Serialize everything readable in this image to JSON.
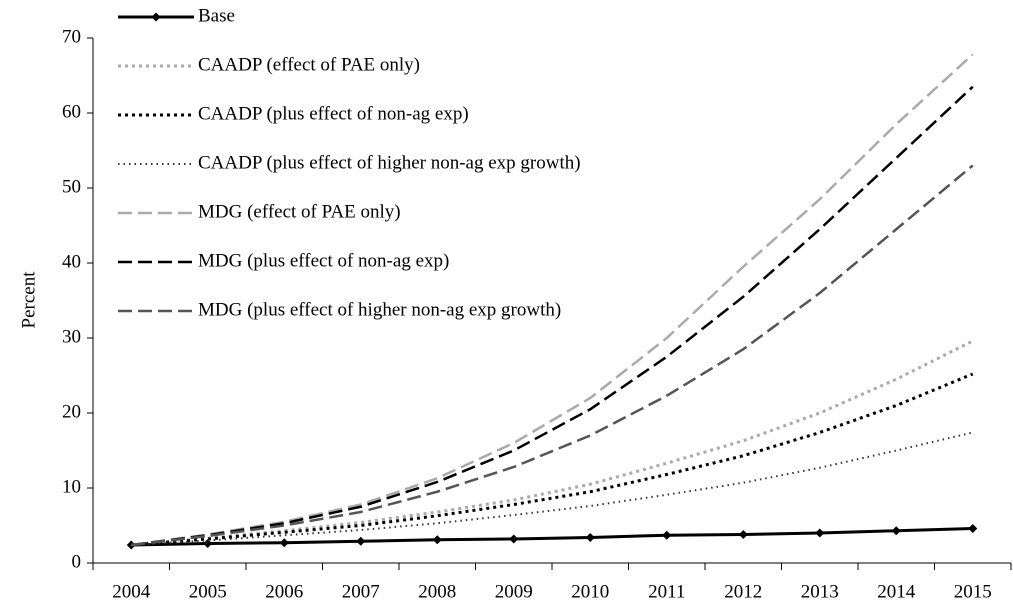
{
  "chart_data": {
    "type": "line",
    "categories": [
      "2004",
      "2005",
      "2006",
      "2007",
      "2008",
      "2009",
      "2010",
      "2011",
      "2012",
      "2013",
      "2014",
      "2015"
    ],
    "ylabel": "Percent",
    "ylim": [
      0,
      70
    ],
    "yticks": [
      0,
      10,
      20,
      30,
      40,
      50,
      60,
      70
    ],
    "grid": false,
    "legend": "upper left",
    "series": [
      {
        "name": "Base",
        "color": "#000000",
        "dash": "solid",
        "marker": "diamond",
        "values": [
          2.4,
          2.6,
          2.7,
          2.9,
          3.1,
          3.2,
          3.4,
          3.7,
          3.8,
          4.0,
          4.3,
          4.6
        ]
      },
      {
        "name": "CAADP (effect of PAE only)",
        "color": "#aaaaaa",
        "dash": "dotted",
        "values": [
          2.4,
          3.3,
          4.3,
          5.4,
          6.8,
          8.4,
          10.5,
          13.3,
          16.3,
          20.0,
          24.5,
          29.6
        ]
      },
      {
        "name": "CAADP (plus effect of non-ag exp)",
        "color": "#000000",
        "dash": "dotted",
        "values": [
          2.4,
          3.2,
          4.1,
          5.0,
          6.3,
          7.8,
          9.5,
          11.8,
          14.3,
          17.4,
          21.0,
          25.2
        ]
      },
      {
        "name": "CAADP (plus effect of higher non-ag exp growth)",
        "color": "#333333",
        "dash": "finedotted",
        "values": [
          2.4,
          3.0,
          3.7,
          4.4,
          5.3,
          6.4,
          7.6,
          9.1,
          10.7,
          12.7,
          15.0,
          17.4
        ]
      },
      {
        "name": "MDG (effect of PAE only)",
        "color": "#aaaaaa",
        "dash": "dashed",
        "values": [
          2.4,
          3.8,
          5.5,
          7.8,
          11.3,
          16.0,
          22.0,
          30.0,
          39.5,
          48.5,
          58.5,
          67.8
        ]
      },
      {
        "name": "MDG (plus effect of non-ag exp)",
        "color": "#000000",
        "dash": "dashed",
        "values": [
          2.4,
          3.7,
          5.3,
          7.5,
          10.8,
          15.0,
          20.5,
          27.5,
          35.5,
          44.5,
          54.0,
          63.5
        ]
      },
      {
        "name": "MDG (plus effect of higher non-ag exp growth)",
        "color": "#555555",
        "dash": "dashed",
        "values": [
          2.4,
          3.6,
          5.0,
          6.8,
          9.5,
          12.8,
          17.0,
          22.3,
          28.5,
          36.0,
          44.5,
          53.0
        ]
      }
    ]
  }
}
